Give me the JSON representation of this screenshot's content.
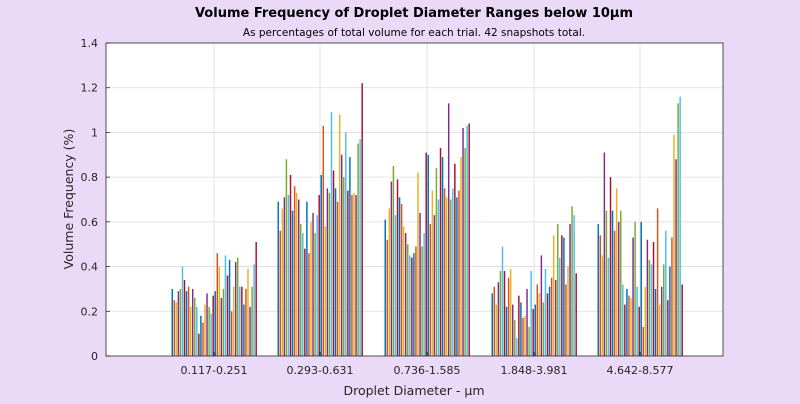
{
  "chart_data": {
    "type": "bar",
    "title": "Volume Frequency of Droplet Diameter Ranges below 10μm",
    "subtitle": "As percentages of total volume for each trial. 42 snapshots total.",
    "xlabel": "Droplet Diameter - μm",
    "ylabel": "Volume Frequency (%)",
    "ylim": [
      0,
      1.4
    ],
    "yticks": [
      "0",
      "0.2",
      "0.4",
      "0.6",
      "0.8",
      "1",
      "1.2",
      "1.4"
    ],
    "grid": true,
    "categories": [
      "0.117-0.251",
      "0.293-0.631",
      "0.736-1.585",
      "1.848-3.981",
      "4.642-8.577"
    ],
    "series_colors": [
      "#0072bd",
      "#d95319",
      "#edb120",
      "#7e2f8e",
      "#77ac30",
      "#4dbeee",
      "#a2142f"
    ],
    "values_by_category": [
      [
        0.3,
        0.25,
        0.24,
        0.29,
        0.3,
        0.4,
        0.34,
        0.29,
        0.31,
        0.22,
        0.3,
        0.26,
        0.22,
        0.1,
        0.18,
        0.15,
        0.23,
        0.28,
        0.22,
        0.19,
        0.27,
        0.29,
        0.46,
        0.4,
        0.26,
        0.3,
        0.45,
        0.36,
        0.43,
        0.2,
        0.31,
        0.42,
        0.44,
        0.31,
        0.31,
        0.23,
        0.3,
        0.39,
        0.22,
        0.31,
        0.41,
        0.51
      ],
      [
        0.69,
        0.56,
        0.66,
        0.71,
        0.88,
        0.72,
        0.81,
        0.65,
        0.76,
        0.73,
        0.7,
        0.59,
        0.55,
        0.48,
        0.69,
        0.46,
        0.6,
        0.64,
        0.55,
        0.63,
        0.72,
        0.81,
        1.03,
        0.58,
        0.75,
        0.73,
        1.09,
        0.83,
        0.75,
        0.69,
        1.08,
        0.9,
        0.8,
        1.0,
        0.74,
        0.89,
        0.72,
        0.73,
        0.72,
        0.95,
        0.97,
        1.22
      ],
      [
        0.61,
        0.52,
        0.66,
        0.78,
        0.85,
        0.63,
        0.79,
        0.71,
        0.68,
        0.58,
        0.55,
        0.5,
        0.45,
        0.44,
        0.46,
        0.49,
        0.82,
        0.64,
        0.49,
        0.55,
        0.91,
        0.9,
        0.59,
        0.74,
        0.63,
        0.84,
        0.7,
        0.93,
        0.89,
        0.75,
        0.71,
        1.13,
        0.7,
        0.75,
        0.86,
        0.71,
        0.74,
        0.89,
        1.02,
        0.93,
        1.03,
        1.04
      ],
      [
        0.28,
        0.31,
        0.23,
        0.33,
        0.38,
        0.49,
        0.38,
        0.22,
        0.35,
        0.39,
        0.23,
        0.16,
        0.08,
        0.27,
        0.24,
        0.17,
        0.18,
        0.3,
        0.13,
        0.38,
        0.21,
        0.23,
        0.32,
        0.28,
        0.45,
        0.24,
        0.39,
        0.28,
        0.31,
        0.35,
        0.54,
        0.34,
        0.59,
        0.44,
        0.54,
        0.53,
        0.32,
        0.4,
        0.59,
        0.67,
        0.63,
        0.37
      ],
      [
        0.59,
        0.54,
        0.45,
        0.91,
        0.65,
        0.44,
        0.8,
        0.65,
        0.56,
        0.75,
        0.6,
        0.65,
        0.32,
        0.23,
        0.3,
        0.27,
        0.26,
        0.53,
        0.6,
        0.31,
        0.22,
        0.6,
        0.13,
        0.31,
        0.52,
        0.43,
        0.41,
        0.51,
        0.3,
        0.66,
        0.23,
        0.31,
        0.41,
        0.56,
        0.25,
        0.4,
        0.53,
        0.99,
        0.88,
        1.13,
        1.16,
        0.32
      ]
    ]
  }
}
